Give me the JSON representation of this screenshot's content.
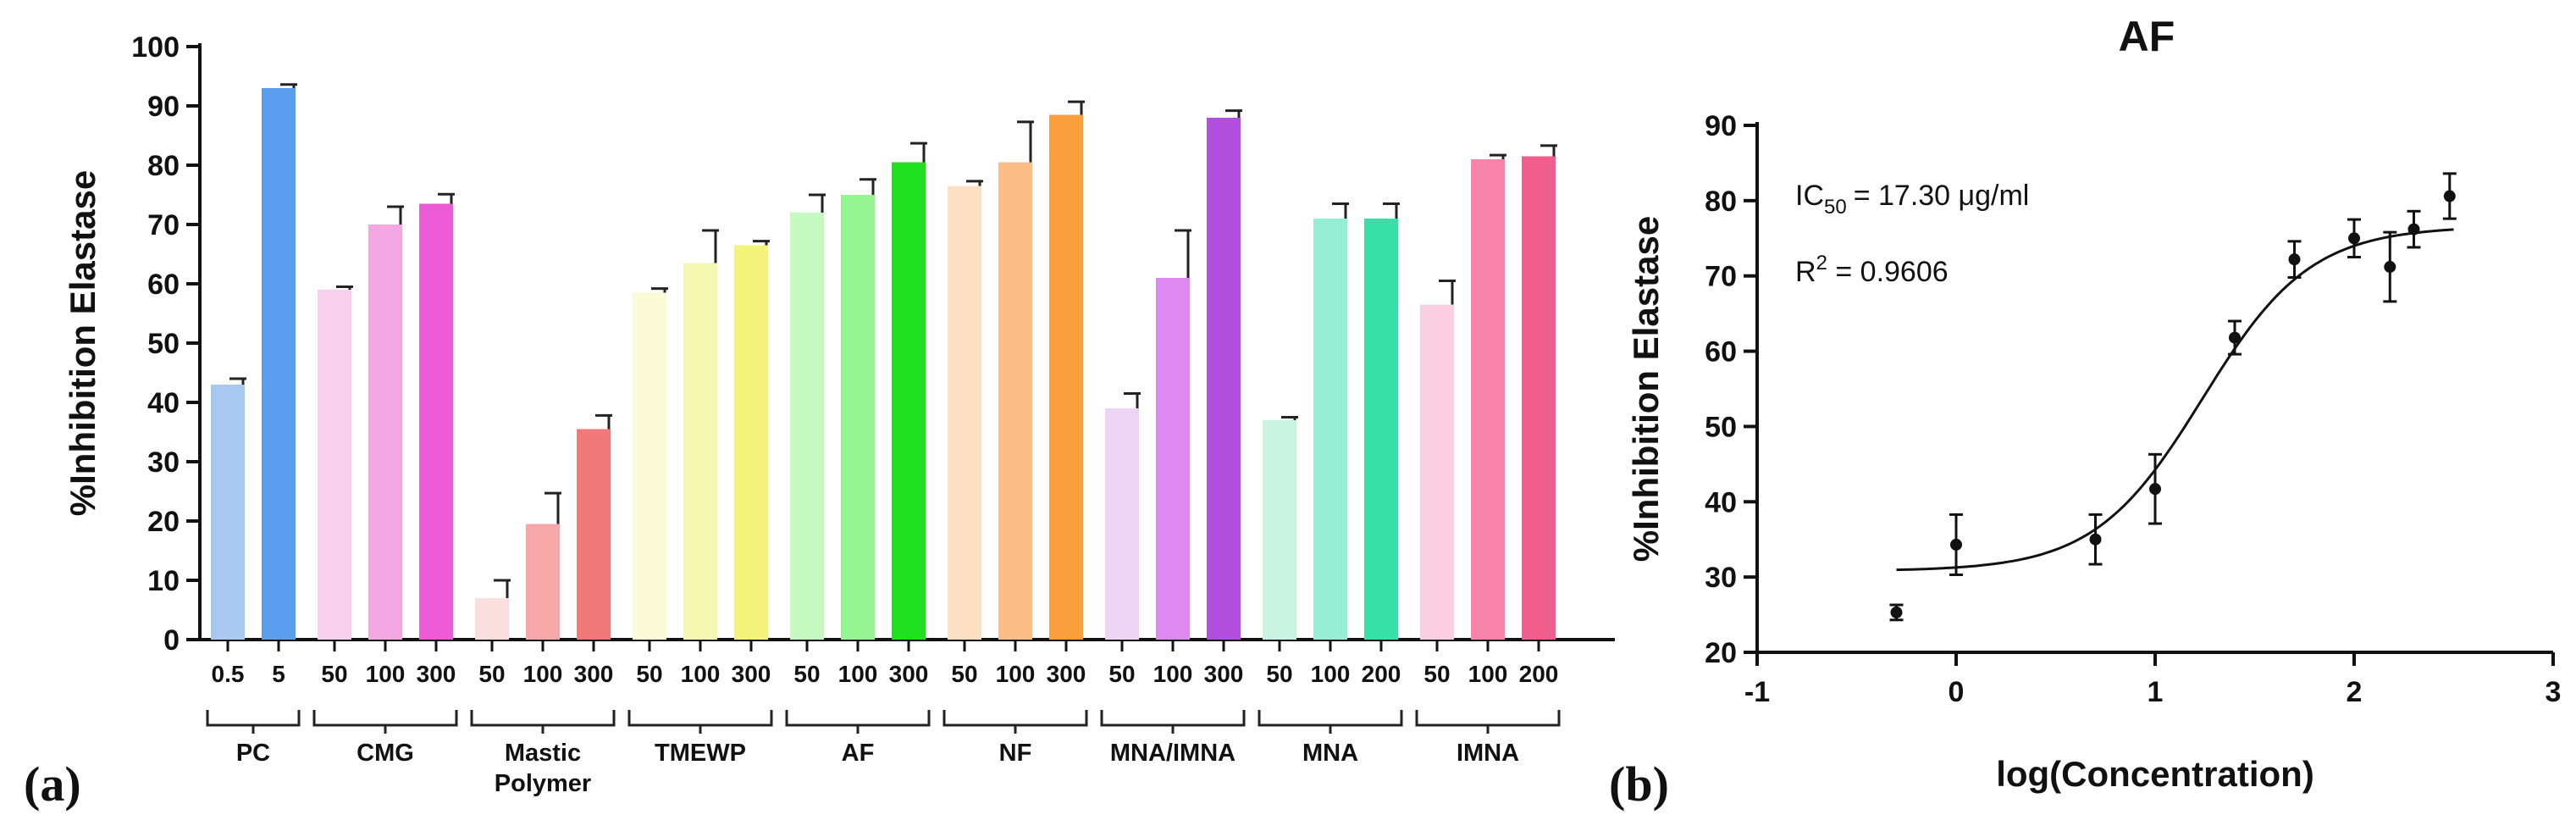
{
  "chart_data": [
    {
      "type": "bar",
      "panel_label": "(a)",
      "title": "",
      "xlabel": "",
      "ylabel": "%Inhibition Elastase",
      "ylim": [
        0,
        100
      ],
      "yticks": [
        0,
        10,
        20,
        30,
        40,
        50,
        60,
        70,
        80,
        90,
        100
      ],
      "groups": [
        {
          "name": "PC",
          "bars": [
            {
              "label": "0.5",
              "value": 43,
              "err": 1.0,
              "color": "#a8c8ef"
            },
            {
              "label": "5",
              "value": 93,
              "err": 0.6,
              "color": "#5b9ef0"
            }
          ]
        },
        {
          "name": "CMG",
          "bars": [
            {
              "label": "50",
              "value": 59,
              "err": 0.5,
              "color": "#f8d0ee"
            },
            {
              "label": "100",
              "value": 70,
              "err": 3.0,
              "color": "#f3a8e4"
            },
            {
              "label": "300",
              "value": 73.5,
              "err": 1.6,
              "color": "#ec5ad6"
            }
          ]
        },
        {
          "name": "Mastic Polymer",
          "bars": [
            {
              "label": "50",
              "value": 7,
              "err": 3.0,
              "color": "#fbdede"
            },
            {
              "label": "100",
              "value": 19.5,
              "err": 5.2,
              "color": "#f6a8a8"
            },
            {
              "label": "300",
              "value": 35.5,
              "err": 2.3,
              "color": "#f07878"
            }
          ]
        },
        {
          "name": "TMEWP",
          "bars": [
            {
              "label": "50",
              "value": 58.5,
              "err": 0.7,
              "color": "#fbfbd8"
            },
            {
              "label": "100",
              "value": 63.5,
              "err": 5.5,
              "color": "#f3f7b0"
            },
            {
              "label": "300",
              "value": 66.5,
              "err": 0.7,
              "color": "#f4f47c"
            }
          ]
        },
        {
          "name": "AF",
          "bars": [
            {
              "label": "50",
              "value": 72,
              "err": 3.0,
              "color": "#c6fac2"
            },
            {
              "label": "100",
              "value": 75,
              "err": 2.6,
              "color": "#96f492"
            },
            {
              "label": "300",
              "value": 80.5,
              "err": 3.2,
              "color": "#1fe01f"
            }
          ]
        },
        {
          "name": "NF",
          "bars": [
            {
              "label": "50",
              "value": 76.5,
              "err": 0.8,
              "color": "#fde0c4"
            },
            {
              "label": "100",
              "value": 80.5,
              "err": 6.8,
              "color": "#fcbe86"
            },
            {
              "label": "300",
              "value": 88.5,
              "err": 2.2,
              "color": "#f99e3a"
            }
          ]
        },
        {
          "name": "MNA/IMNA",
          "bars": [
            {
              "label": "50",
              "value": 39,
              "err": 2.5,
              "color": "#eed4f4"
            },
            {
              "label": "100",
              "value": 61,
              "err": 8.0,
              "color": "#dc8af0"
            },
            {
              "label": "300",
              "value": 88,
              "err": 1.2,
              "color": "#b150dc"
            }
          ]
        },
        {
          "name": "MNA",
          "bars": [
            {
              "label": "50",
              "value": 37,
              "err": 0.5,
              "color": "#c9f4e4"
            },
            {
              "label": "100",
              "value": 71,
              "err": 2.5,
              "color": "#96eed2"
            },
            {
              "label": "200",
              "value": 71,
              "err": 2.5,
              "color": "#38e0a8"
            }
          ]
        },
        {
          "name": "IMNA",
          "bars": [
            {
              "label": "50",
              "value": 56.5,
              "err": 4.0,
              "color": "#fbcfe0"
            },
            {
              "label": "100",
              "value": 81,
              "err": 0.7,
              "color": "#f884ac"
            },
            {
              "label": "200",
              "value": 81.5,
              "err": 1.8,
              "color": "#f05e8e"
            }
          ]
        }
      ]
    },
    {
      "type": "scatter",
      "panel_label": "(b)",
      "title": "AF",
      "xlabel": "log(Concentration)",
      "ylabel": "%Inhibition Elastase",
      "xlim": [
        -1,
        3
      ],
      "ylim": [
        20,
        90
      ],
      "xticks": [
        -1,
        0,
        1,
        2,
        3
      ],
      "yticks": [
        20,
        30,
        40,
        50,
        60,
        70,
        80,
        90
      ],
      "annotations": {
        "ic50_prefix": "IC",
        "ic50_sub": "50",
        "ic50_rest": "= 17.30 μg/ml",
        "r2_prefix": "R",
        "r2_sup": "2",
        "r2_rest": " = 0.9606"
      },
      "points": [
        {
          "x": -0.3,
          "y": 25.3,
          "err": 1.0
        },
        {
          "x": 0.0,
          "y": 34.3,
          "err": 4.0
        },
        {
          "x": 0.7,
          "y": 35.0,
          "err": 3.3
        },
        {
          "x": 1.0,
          "y": 41.7,
          "err": 4.6
        },
        {
          "x": 1.4,
          "y": 61.8,
          "err": 2.2
        },
        {
          "x": 1.7,
          "y": 72.2,
          "err": 2.4
        },
        {
          "x": 2.0,
          "y": 75.0,
          "err": 2.5
        },
        {
          "x": 2.18,
          "y": 71.2,
          "err": 4.6
        },
        {
          "x": 2.3,
          "y": 76.2,
          "err": 2.4
        },
        {
          "x": 2.48,
          "y": 80.6,
          "err": 3.0
        }
      ],
      "fit": {
        "model": "four-parameter logistic",
        "bottom": 30.8,
        "top": 76.6,
        "logIC50": 1.238,
        "hill": 1.6,
        "x_range": [
          -0.3,
          2.5
        ]
      }
    }
  ]
}
